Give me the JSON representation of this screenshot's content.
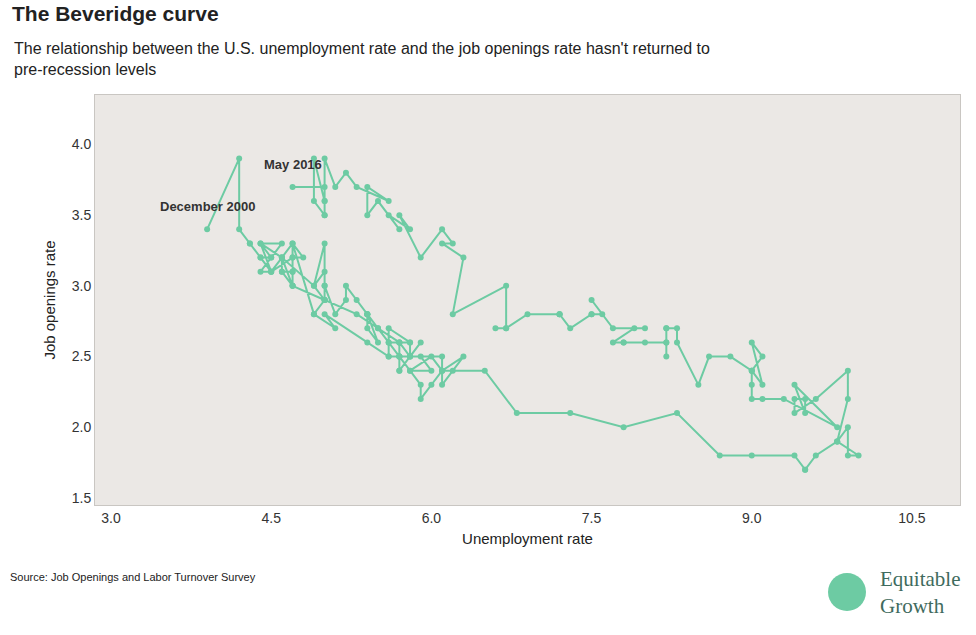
{
  "chart_data": {
    "type": "line",
    "title": "The Beveridge curve",
    "subtitle": [
      "The relationship between the U.S. unemployment rate and the job openings rate hasn't returned to",
      "pre-recession levels"
    ],
    "x_label": "Unemployment rate",
    "y_label": "Job openings rate",
    "source": "Source: Job Openings and Labor Turnover Survey",
    "brand": [
      "Equitable",
      "Growth"
    ],
    "color": "#6dcba3",
    "marker": "circle",
    "line_style": "solid",
    "grid": false,
    "xlim": [
      2.85,
      10.95
    ],
    "ylim": [
      1.45,
      4.35
    ],
    "xticks": [
      {
        "value": 3,
        "label": "3.0"
      },
      4.5,
      {
        "value": 6,
        "label": "6.0"
      },
      7.5,
      {
        "value": 9,
        "label": "9.0"
      },
      10.5
    ],
    "yticks": [
      {
        "value": 1.5,
        "label": "1.5"
      },
      {
        "value": 2,
        "label": "2.0"
      },
      {
        "value": 2.5,
        "label": "2.5"
      },
      {
        "value": 3,
        "label": "3.0"
      },
      {
        "value": 3.5,
        "label": "3.5"
      },
      {
        "value": 4,
        "label": "4.0"
      }
    ],
    "annotations": [
      {
        "text": "December 2000",
        "x": 3.9,
        "y": 3.4
      },
      {
        "text": "May 2016",
        "x": 4.7,
        "y": 3.7
      }
    ],
    "x": [
      3.9,
      4.2,
      4.2,
      4.3,
      4.4,
      4.3,
      4.5,
      4.6,
      4.9,
      5.0,
      5.3,
      5.5,
      5.7,
      5.7,
      5.7,
      5.7,
      5.9,
      5.8,
      5.8,
      5.8,
      5.7,
      5.7,
      5.7,
      5.9,
      6.0,
      5.8,
      5.9,
      5.9,
      6.0,
      6.1,
      6.3,
      6.2,
      6.1,
      6.1,
      6.0,
      5.8,
      5.7,
      5.7,
      5.6,
      5.8,
      5.6,
      5.6,
      5.6,
      5.5,
      5.4,
      5.4,
      5.5,
      5.4,
      5.4,
      5.3,
      5.4,
      5.2,
      5.2,
      5.1,
      5.0,
      5.0,
      4.9,
      5.0,
      5.0,
      5.0,
      4.9,
      4.7,
      4.8,
      4.7,
      4.7,
      4.6,
      4.6,
      4.7,
      4.7,
      4.5,
      4.4,
      4.5,
      4.4,
      4.6,
      4.5,
      4.4,
      4.5,
      4.4,
      4.6,
      4.7,
      4.6,
      4.7,
      4.7,
      4.7,
      5.0,
      5.0,
      4.9,
      5.1,
      5.0,
      5.4,
      5.6,
      5.8,
      6.1,
      6.1,
      6.5,
      6.8,
      7.3,
      7.8,
      8.3,
      8.7,
      9.0,
      9.4,
      9.5,
      9.5,
      9.6,
      9.8,
      10.0,
      9.9,
      9.9,
      9.8,
      9.8,
      9.9,
      9.9,
      9.6,
      9.4,
      9.4,
      9.5,
      9.5,
      9.4,
      9.8,
      9.3,
      9.1,
      9.0,
      9.0,
      9.1,
      9.0,
      9.1,
      9.0,
      9.0,
      9.0,
      8.8,
      8.6,
      8.5,
      8.3,
      8.3,
      8.2,
      8.2,
      8.2,
      8.2,
      8.2,
      8.0,
      7.8,
      7.8,
      7.7,
      7.9,
      8.0,
      7.7,
      7.5,
      7.6,
      7.5,
      7.5,
      7.3,
      7.2,
      7.2,
      7.2,
      6.9,
      6.7,
      6.6,
      6.7,
      6.7,
      6.2,
      6.3,
      6.1,
      6.2,
      6.1,
      5.9,
      5.7,
      5.8,
      5.6,
      5.7,
      5.5,
      5.4,
      5.4,
      5.6,
      5.3,
      5.2,
      5.1,
      5.0,
      5.0,
      5.0,
      5.0,
      4.9,
      4.9,
      5.0,
      5.0,
      4.7
    ],
    "values": [
      3.4,
      3.9,
      3.4,
      3.3,
      3.2,
      3.3,
      3.1,
      3.2,
      3.0,
      2.9,
      2.8,
      2.7,
      2.6,
      2.6,
      2.5,
      2.4,
      2.6,
      2.5,
      2.6,
      2.5,
      2.6,
      2.4,
      2.5,
      2.5,
      2.4,
      2.4,
      2.3,
      2.2,
      2.3,
      2.4,
      2.5,
      2.4,
      2.3,
      2.4,
      2.5,
      2.4,
      2.5,
      2.5,
      2.6,
      2.6,
      2.7,
      2.5,
      2.6,
      2.7,
      2.8,
      2.7,
      2.6,
      2.8,
      2.8,
      2.9,
      2.8,
      3.0,
      2.9,
      2.8,
      3.0,
      3.1,
      3.0,
      3.3,
      3.0,
      2.9,
      2.8,
      3.3,
      3.2,
      3.2,
      3.3,
      3.2,
      3.1,
      3.1,
      3.2,
      3.1,
      3.1,
      3.2,
      3.3,
      3.3,
      3.2,
      3.2,
      3.1,
      3.3,
      3.2,
      3.0,
      3.1,
      3.0,
      3.1,
      3.0,
      2.9,
      2.9,
      2.8,
      2.7,
      2.8,
      2.6,
      2.5,
      2.5,
      2.5,
      2.4,
      2.4,
      2.1,
      2.1,
      2.0,
      2.1,
      1.8,
      1.8,
      1.8,
      1.7,
      1.7,
      1.8,
      1.9,
      1.8,
      1.8,
      2.0,
      1.9,
      1.9,
      2.2,
      2.4,
      2.2,
      2.1,
      2.2,
      2.2,
      2.1,
      2.3,
      2.0,
      2.2,
      2.2,
      2.2,
      2.4,
      2.3,
      2.6,
      2.5,
      2.4,
      2.3,
      2.4,
      2.5,
      2.5,
      2.3,
      2.6,
      2.7,
      2.7,
      2.5,
      2.6,
      2.7,
      2.6,
      2.6,
      2.6,
      2.6,
      2.6,
      2.7,
      2.7,
      2.7,
      2.9,
      2.8,
      2.8,
      2.8,
      2.7,
      2.8,
      2.8,
      2.8,
      2.8,
      2.7,
      2.7,
      2.7,
      3.0,
      2.8,
      3.2,
      3.3,
      3.3,
      3.4,
      3.2,
      3.5,
      3.4,
      3.5,
      3.4,
      3.6,
      3.5,
      3.7,
      3.6,
      3.7,
      3.8,
      3.7,
      3.9,
      3.5,
      3.6,
      3.5,
      3.6,
      3.9,
      3.6,
      3.7,
      3.7
    ]
  }
}
